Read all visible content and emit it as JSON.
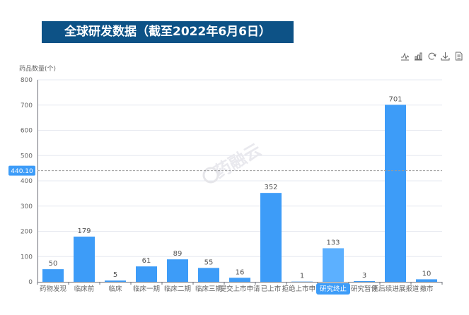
{
  "title": "全球研发数据（截至2022年6月6日）",
  "toolbar": [
    "line-chart-icon",
    "bar-chart-icon",
    "restore-icon",
    "download-icon",
    "data-view-icon"
  ],
  "chart_data": {
    "type": "bar",
    "ylabel": "药品数量(个)",
    "xlabel": "",
    "ylim": [
      0,
      800
    ],
    "yticks": [
      0,
      100,
      200,
      300,
      400,
      500,
      600,
      700,
      800
    ],
    "categories": [
      "药物发现",
      "临床前",
      "临床",
      "临床一期",
      "临床二期",
      "临床三期",
      "提交上市申请",
      "已上市",
      "拒绝上市申请",
      "研究终止",
      "研究暂停",
      "无后续进展报道",
      "撤市"
    ],
    "values": [
      50,
      179,
      5,
      61,
      89,
      55,
      16,
      352,
      1,
      133,
      3,
      701,
      10
    ],
    "highlighted_category": "研究终止",
    "crosshair_value": "440.10",
    "grid": true,
    "bar_color": "#3d9cf8",
    "highlight_color": "#5cb0ff",
    "watermark": "药融云"
  }
}
